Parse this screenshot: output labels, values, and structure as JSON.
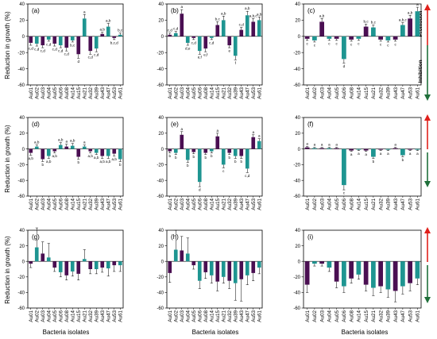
{
  "figure": {
    "ylabel": "Reduction in growth (%)",
    "xlabel": "Bacteria isolates",
    "promotion_label": "Promotion",
    "inhibition_label": "Inhibition"
  },
  "colors": {
    "dark": "#4a0f52",
    "teal": "#1e9591",
    "arrow_up": "#e0201b",
    "arrow_down": "#1f6f3a"
  },
  "chart_data": [
    {
      "type": "bar",
      "title": "(a)",
      "ylim": [
        -60,
        40
      ],
      "yticks": [
        -60,
        -40,
        -20,
        0,
        20,
        40
      ],
      "categories": [
        "Au01",
        "Au02",
        "Au03",
        "Au04",
        "Au05",
        "Au06",
        "Au08",
        "Au14",
        "Au15",
        "Au21",
        "Au32",
        "Au39",
        "Au43",
        "Au47",
        "Au53",
        "Au61"
      ],
      "values": [
        -8,
        -9,
        -11,
        -4,
        -9,
        -11,
        -14,
        -5,
        -22,
        22,
        -18,
        -15,
        3,
        12,
        -2,
        2
      ],
      "errors": [
        3,
        3,
        3,
        2,
        3,
        3,
        4,
        2,
        5,
        5,
        4,
        4,
        2,
        4,
        2,
        2
      ],
      "labels": [
        "c,d",
        "c,d",
        "c,d",
        "c,d",
        "c,d",
        "c,d",
        "c,d",
        "b,c",
        "d",
        "a",
        "c,d",
        "c,d",
        "a,b",
        "a,b",
        "b,c,d",
        "b,c"
      ]
    },
    {
      "type": "bar",
      "title": "(b)",
      "ylim": [
        -60,
        40
      ],
      "yticks": [
        -60,
        -40,
        -20,
        0,
        20,
        40
      ],
      "categories": [
        "Au01",
        "Au02",
        "Au03",
        "Au04",
        "Au05",
        "Au06",
        "Au08",
        "Au14",
        "Au15",
        "Au21",
        "Au32",
        "Au39",
        "Au43",
        "Au47",
        "Au53",
        "Au61"
      ],
      "values": [
        2,
        4,
        28,
        -8,
        -2,
        -18,
        -15,
        -2,
        14,
        20,
        -11,
        -24,
        8,
        26,
        18,
        20
      ],
      "errors": [
        2,
        2,
        5,
        3,
        2,
        4,
        4,
        2,
        4,
        5,
        3,
        5,
        3,
        5,
        4,
        4
      ],
      "labels": [
        "c,d",
        "c,d",
        "a",
        "d,e",
        "c,d",
        "e,f",
        "e,f",
        "c,d",
        "b,c",
        "a,b",
        "e",
        "f",
        "c,d",
        "a,b",
        "a,b,c",
        "a,b"
      ]
    },
    {
      "type": "bar",
      "title": "(c)",
      "ylim": [
        -60,
        40
      ],
      "yticks": [
        -60,
        -40,
        -20,
        0,
        20,
        40
      ],
      "categories": [
        "Au01",
        "Au02",
        "Au03",
        "Au04",
        "Au05",
        "Au06",
        "Au08",
        "Au14",
        "Au15",
        "Au21",
        "Au32",
        "Au39",
        "Au43",
        "Au47",
        "Au53",
        "Au61"
      ],
      "values": [
        -3,
        -5,
        18,
        -3,
        -3,
        -28,
        -4,
        -3,
        12,
        11,
        -4,
        -5,
        -4,
        14,
        22,
        31
      ],
      "errors": [
        2,
        2,
        4,
        2,
        2,
        5,
        2,
        2,
        3,
        3,
        2,
        2,
        2,
        3,
        4,
        5
      ],
      "labels": [
        "c",
        "c",
        "a,b",
        "c",
        "c",
        "d",
        "c",
        "c",
        "b,c",
        "b,c",
        "c",
        "c",
        "c",
        "a,b,c",
        "a,b",
        "a"
      ]
    },
    {
      "type": "bar",
      "title": "(d)",
      "ylim": [
        -60,
        40
      ],
      "yticks": [
        -60,
        -40,
        -20,
        0,
        20,
        40
      ],
      "categories": [
        "Au01",
        "Au02",
        "Au03",
        "Au04",
        "Au05",
        "Au06",
        "Au08",
        "Au14",
        "Au15",
        "Au21",
        "Au32",
        "Au39",
        "Au43",
        "Au47",
        "Au53",
        "Au61"
      ],
      "values": [
        -5,
        3,
        -13,
        -9,
        -3,
        5,
        3,
        4,
        -10,
        3,
        -3,
        -5,
        -9,
        -9,
        -6,
        -13
      ],
      "errors": [
        3,
        2,
        3,
        3,
        2,
        3,
        3,
        3,
        3,
        2,
        2,
        2,
        3,
        3,
        3,
        3
      ],
      "labels": [
        "a,b",
        "a,b",
        "b",
        "a,b",
        "a,b",
        "a,b",
        "a",
        "a,b",
        "b",
        "a",
        "a,b",
        "a,b",
        "a,b",
        "a,b",
        "a,b",
        "b"
      ]
    },
    {
      "type": "bar",
      "title": "(e)",
      "ylim": [
        -60,
        40
      ],
      "yticks": [
        -60,
        -40,
        -20,
        0,
        20,
        40
      ],
      "categories": [
        "Au01",
        "Au02",
        "Au03",
        "Au04",
        "Au05",
        "Au06",
        "Au08",
        "Au14",
        "Au15",
        "Au21",
        "Au32",
        "Au39",
        "Au43",
        "Au47",
        "Au53",
        "Au61"
      ],
      "values": [
        -3,
        -5,
        18,
        -14,
        -4,
        -42,
        -5,
        -3,
        16,
        -20,
        -5,
        -9,
        -9,
        -25,
        15,
        10
      ],
      "errors": [
        2,
        2,
        4,
        3,
        2,
        6,
        2,
        2,
        4,
        4,
        2,
        3,
        3,
        5,
        3,
        3
      ],
      "labels": [
        "b",
        "b",
        "a",
        "b",
        "b",
        "d",
        "b",
        "b",
        "a",
        "c",
        "b",
        "b",
        "b",
        "c,d",
        "a",
        "a"
      ]
    },
    {
      "type": "bar",
      "title": "(f)",
      "ylim": [
        -60,
        40
      ],
      "yticks": [
        -60,
        -40,
        -20,
        0,
        20,
        40
      ],
      "categories": [
        "Au01",
        "Au02",
        "Au03",
        "Au04",
        "Au05",
        "Au06",
        "Au08",
        "Au14",
        "Au15",
        "Au21",
        "Au32",
        "Au39",
        "Au43",
        "Au47",
        "Au53",
        "Au61"
      ],
      "values": [
        2,
        1,
        1,
        1,
        1,
        -46,
        -2,
        -1,
        -2,
        -10,
        -1,
        -1,
        1,
        -8,
        -1,
        -1
      ],
      "errors": [
        1,
        1,
        1,
        1,
        1,
        6,
        1,
        1,
        1,
        2,
        1,
        1,
        1,
        2,
        1,
        1
      ],
      "labels": [
        "a",
        "a",
        "a",
        "a",
        "a",
        "c",
        "a",
        "a",
        "a",
        "b",
        "a",
        "a",
        "a",
        "b",
        "a",
        "a"
      ]
    },
    {
      "type": "bar",
      "title": "(g)",
      "ylim": [
        -60,
        40
      ],
      "yticks": [
        -60,
        -40,
        -20,
        0,
        20,
        40
      ],
      "categories": [
        "Au01",
        "Au02",
        "Au03",
        "Au04",
        "Au05",
        "Au06",
        "Au08",
        "Au14",
        "Au15",
        "Au21",
        "Au32",
        "Au39",
        "Au43",
        "Au47",
        "Au53",
        "Au61"
      ],
      "values": [
        -3,
        18,
        10,
        5,
        -8,
        -14,
        -18,
        -13,
        -16,
        3,
        -10,
        -10,
        -8,
        -9,
        -5,
        -5
      ],
      "errors": [
        5,
        25,
        15,
        18,
        5,
        6,
        6,
        6,
        8,
        12,
        6,
        6,
        6,
        10,
        8,
        8
      ],
      "labels": []
    },
    {
      "type": "bar",
      "title": "(h)",
      "ylim": [
        -60,
        40
      ],
      "yticks": [
        -60,
        -40,
        -20,
        0,
        20,
        40
      ],
      "categories": [
        "Au01",
        "Au02",
        "Au03",
        "Au04",
        "Au05",
        "Au06",
        "Au08",
        "Au14",
        "Au15",
        "Au21",
        "Au32",
        "Au39",
        "Au43",
        "Au47",
        "Au53",
        "Au61"
      ],
      "values": [
        -15,
        15,
        14,
        10,
        -5,
        -25,
        -14,
        -18,
        -26,
        -20,
        -25,
        -28,
        -23,
        -18,
        -15,
        -8
      ],
      "errors": [
        12,
        25,
        18,
        20,
        5,
        10,
        8,
        10,
        12,
        8,
        10,
        22,
        28,
        12,
        10,
        8
      ],
      "labels": []
    },
    {
      "type": "bar",
      "title": "(i)",
      "ylim": [
        -60,
        40
      ],
      "yticks": [
        -60,
        -40,
        -20,
        0,
        20,
        40
      ],
      "categories": [
        "Au01",
        "Au02",
        "Au03",
        "Au04",
        "Au05",
        "Au06",
        "Au08",
        "Au14",
        "Au15",
        "Au21",
        "Au32",
        "Au39",
        "Au43",
        "Au47",
        "Au53",
        "Au61"
      ],
      "values": [
        -30,
        -3,
        -3,
        -8,
        -26,
        -32,
        -22,
        -17,
        -30,
        -34,
        -32,
        -36,
        -38,
        -32,
        -28,
        -22
      ],
      "errors": [
        10,
        3,
        3,
        5,
        8,
        8,
        6,
        6,
        8,
        10,
        8,
        10,
        14,
        10,
        10,
        8
      ],
      "labels": []
    }
  ]
}
